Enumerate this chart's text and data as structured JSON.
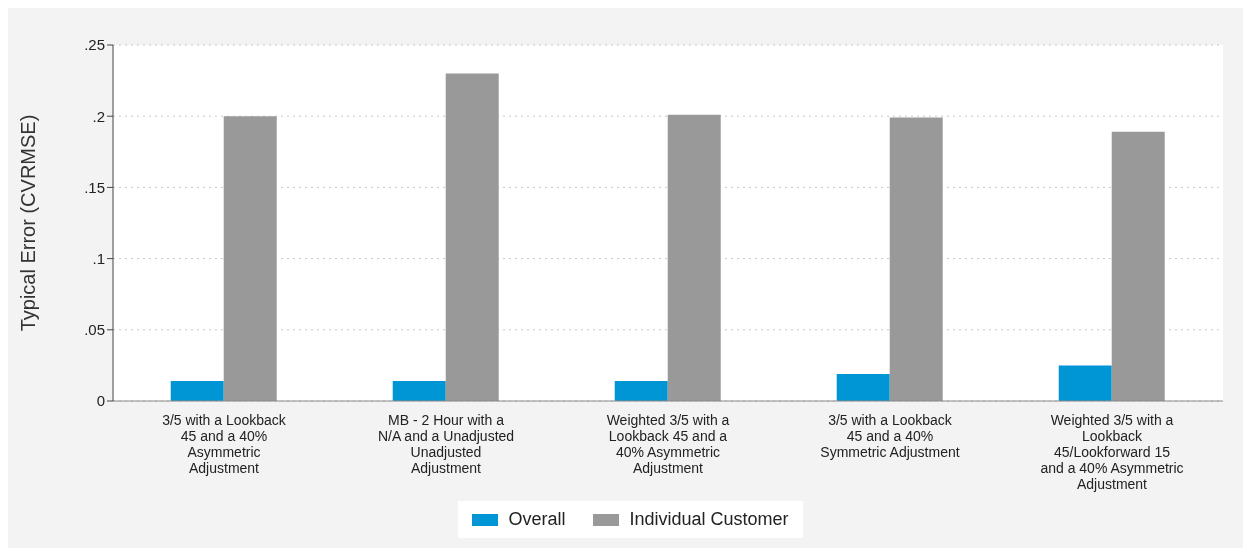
{
  "chart_data": {
    "type": "bar",
    "ylabel": "Typical Error (CVRMSE)",
    "categories": [
      "3/5 with a Lookback 45 and a 40% Asymmetric Adjustment",
      "MB - 2 Hour with a N/A and a Unadjusted Unadjusted Adjustment",
      "Weighted 3/5 with a Lookback 45 and a 40% Asymmetric Adjustment",
      "3/5 with a Lookback 45 and a 40% Symmetric Adjustment",
      "Weighted 3/5 with a Lookback 45/Lookforward 15 and a 40% Asymmetric Adjustment"
    ],
    "series": [
      {
        "name": "Overall",
        "color": "#0096d6",
        "values": [
          0.014,
          0.014,
          0.014,
          0.019,
          0.025
        ]
      },
      {
        "name": "Individual Customer",
        "color": "#999999",
        "values": [
          0.2,
          0.23,
          0.201,
          0.199,
          0.189
        ]
      }
    ],
    "ylim": [
      0,
      0.25
    ],
    "yticks": [
      0,
      {
        "value": 0.05,
        "label": ".05"
      },
      {
        "value": 0.1,
        "label": ".1"
      },
      {
        "value": 0.15,
        "label": ".15"
      },
      {
        "value": 0.2,
        "label": ".2"
      },
      {
        "value": 0.25,
        "label": ".25"
      }
    ],
    "grid": "y",
    "legend": "bottom"
  }
}
